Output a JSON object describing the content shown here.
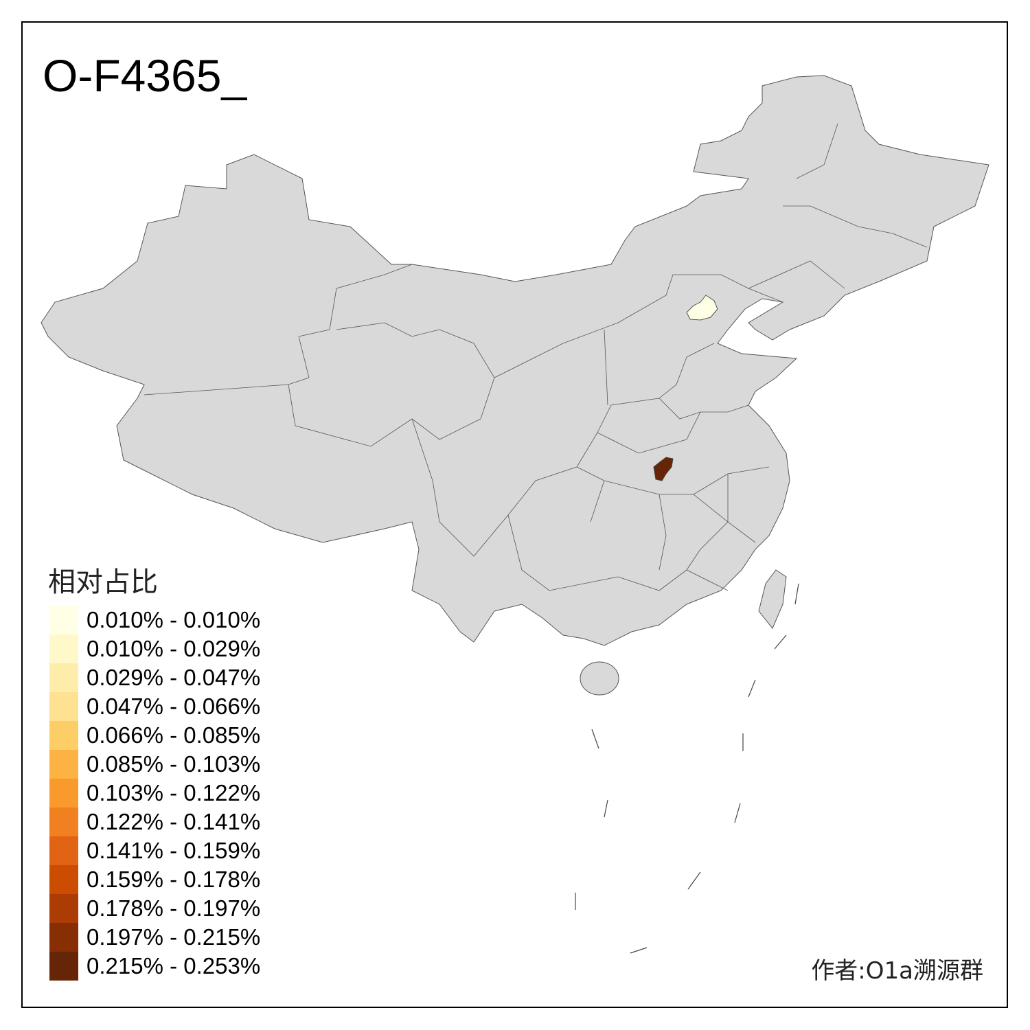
{
  "title": "O-F4365_",
  "legend": {
    "title": "相对占比",
    "items": [
      {
        "label": "0.010% - 0.010%",
        "color": "#FFFFE5"
      },
      {
        "label": "0.010% - 0.029%",
        "color": "#FFF8C8"
      },
      {
        "label": "0.029% - 0.047%",
        "color": "#FEEDAA"
      },
      {
        "label": "0.047% - 0.066%",
        "color": "#FEE292"
      },
      {
        "label": "0.066% - 0.085%",
        "color": "#FECE66"
      },
      {
        "label": "0.085% - 0.103%",
        "color": "#FDB344"
      },
      {
        "label": "0.103% - 0.122%",
        "color": "#FB9A2C"
      },
      {
        "label": "0.122% - 0.141%",
        "color": "#F08020"
      },
      {
        "label": "0.141% - 0.159%",
        "color": "#E06414"
      },
      {
        "label": "0.159% - 0.178%",
        "color": "#CC4C02"
      },
      {
        "label": "0.178% - 0.197%",
        "color": "#AA3C04"
      },
      {
        "label": "0.197% - 0.215%",
        "color": "#882E05"
      },
      {
        "label": "0.215% - 0.253%",
        "color": "#662506"
      }
    ]
  },
  "map": {
    "base_color": "#D9D9D9",
    "highlighted_regions": [
      {
        "region": "Beijing",
        "color": "#FFFFE5"
      },
      {
        "region": "Hubei (city)",
        "color": "#662506"
      }
    ]
  },
  "author": "作者:O1a溯源群"
}
